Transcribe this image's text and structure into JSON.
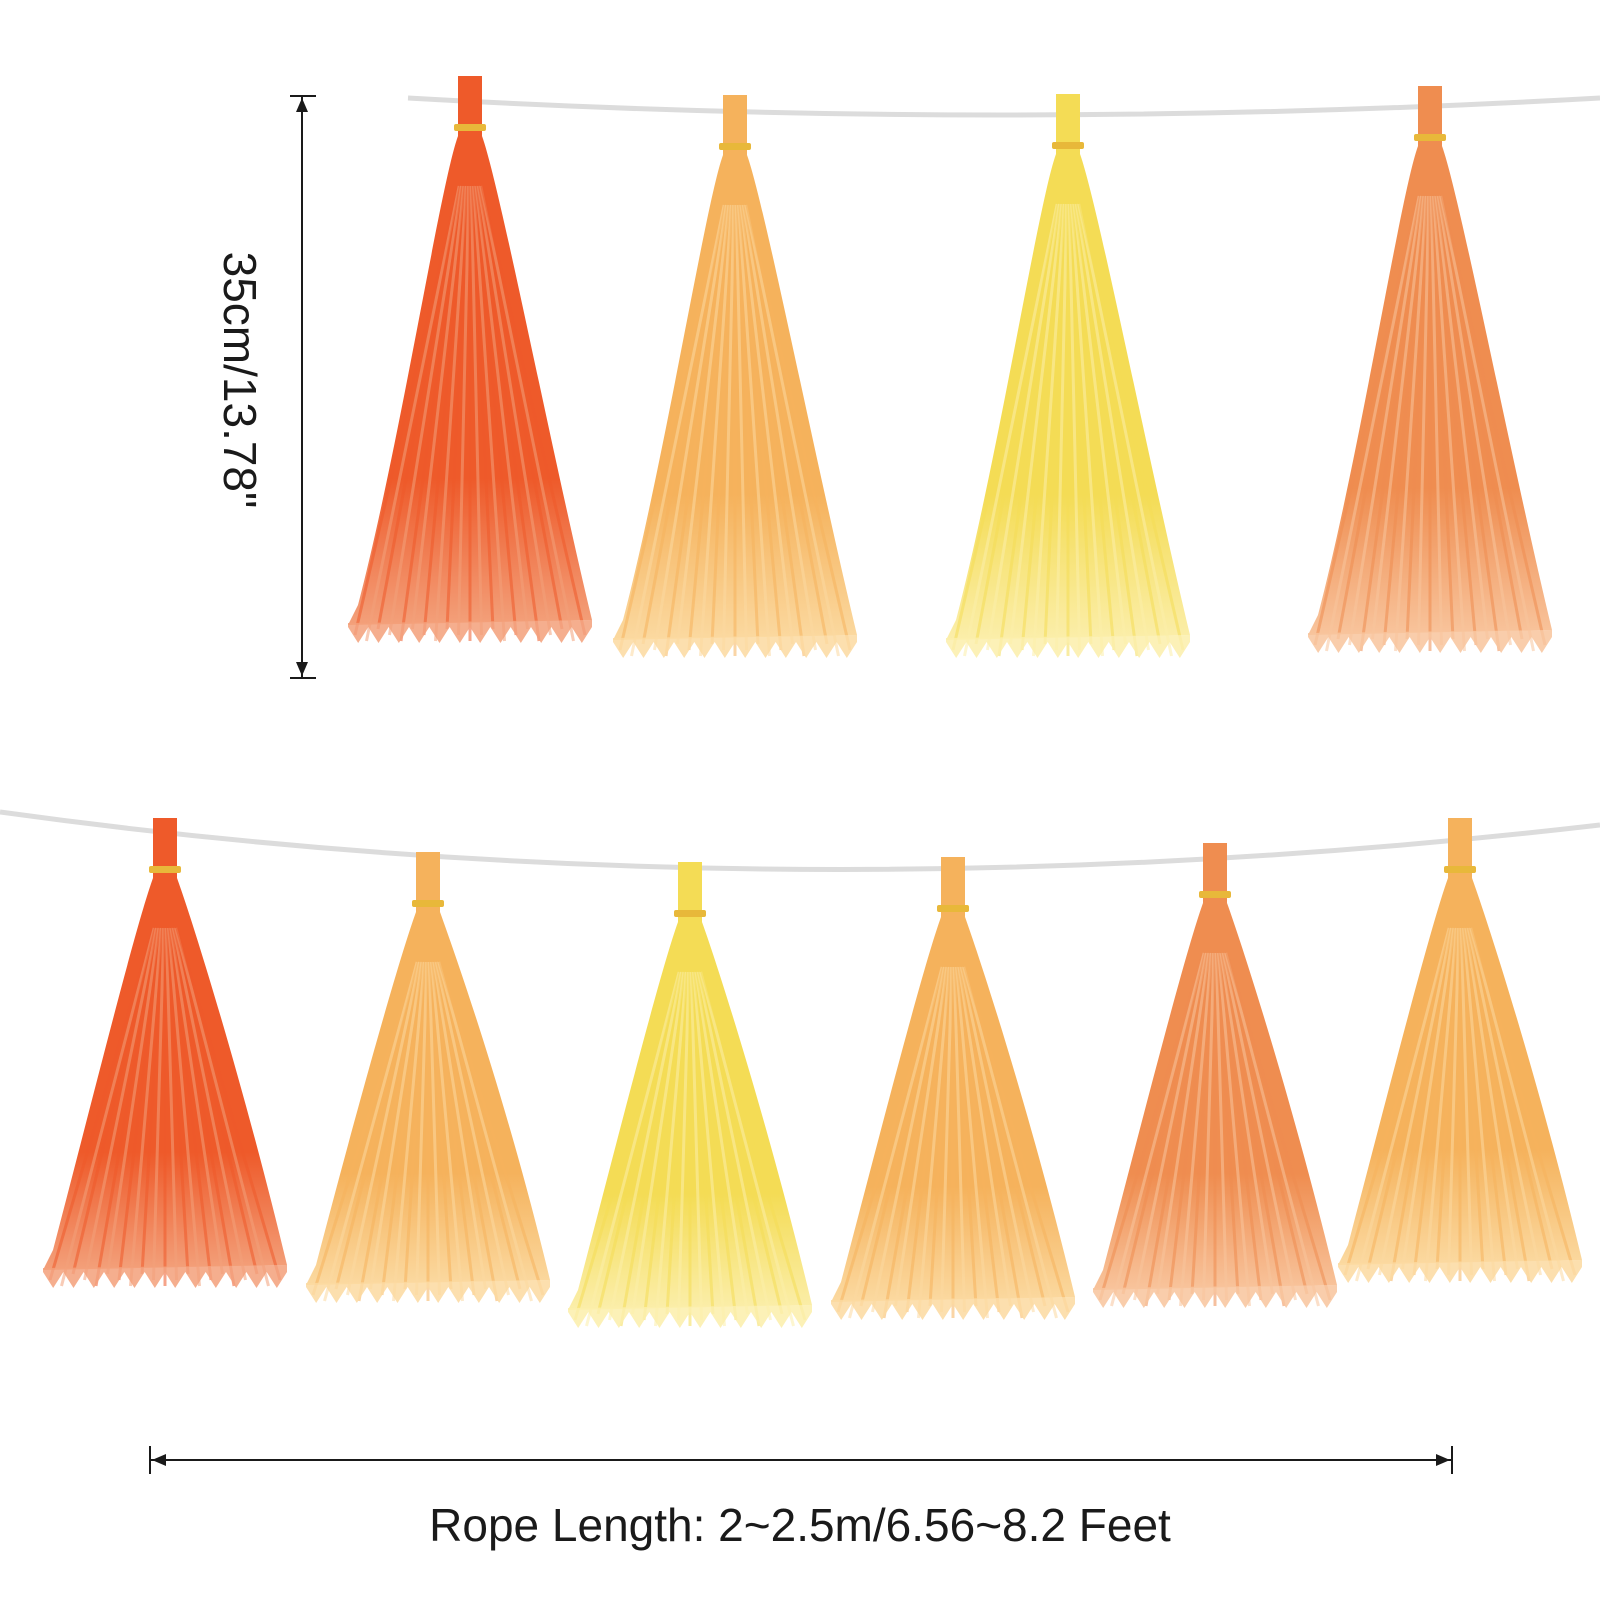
{
  "dimensions": {
    "height_label": "35cm/13.78\"",
    "rope_label": "Rope Length: 2~2.5m/6.56~8.2 Feet"
  },
  "colors": {
    "background": "#ffffff",
    "rope": "#dcdcdc",
    "arrow": "#1a1a1a",
    "band": "#e8b83a",
    "tassel_shades": {
      "red_orange": [
        "#ee5a2a",
        "#f3a07a"
      ],
      "light_orange": [
        "#f5b25c",
        "#fbd9a0"
      ],
      "yellow": [
        "#f4dc55",
        "#fbeeaa"
      ],
      "peach": [
        "#ef8d50",
        "#f8c49c"
      ]
    }
  },
  "garland": {
    "rows": [
      {
        "name": "top-row",
        "tassels": [
          "red_orange",
          "light_orange",
          "yellow",
          "peach"
        ]
      },
      {
        "name": "bottom-row",
        "tassels": [
          "red_orange",
          "light_orange",
          "yellow",
          "light_orange",
          "peach",
          "light_orange"
        ]
      }
    ]
  }
}
